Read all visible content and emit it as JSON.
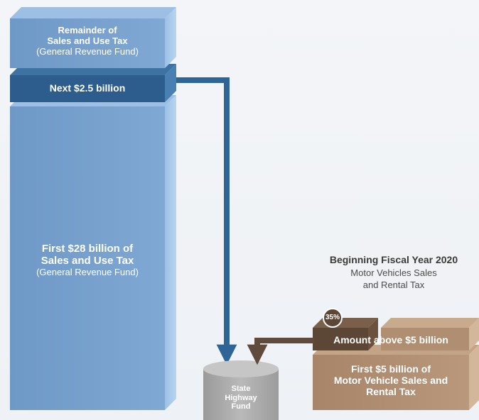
{
  "sales_tax": {
    "remainder": {
      "line1": "Remainder of",
      "line2": "Sales and Use Tax",
      "line3": "(General Revenue Fund)"
    },
    "next": {
      "label": "Next $2.5 billion"
    },
    "first": {
      "line1": "First $28 billion of",
      "line2": "Sales and Use Tax",
      "line3": "(General Revenue Fund)"
    }
  },
  "motor_vehicle": {
    "heading": "Beginning Fiscal Year 2020",
    "sub1": "Motor Vehicles Sales",
    "sub2": "and Rental Tax",
    "percent": "35%",
    "above": "Amount above $5 billion",
    "first": {
      "line1": "First $5 billion of",
      "line2": "Motor Vehicle Sales and",
      "line3": "Rental Tax"
    }
  },
  "fund": {
    "line1": "State",
    "line2": "Highway",
    "line3": "Fund"
  },
  "colors": {
    "blue_light": "#7aa3d1",
    "blue_dark": "#2c5d8c",
    "blue_arrow": "#2f6496",
    "tan": "#b08e71",
    "tan_dark": "#5c4636",
    "brown_arrow": "#5f4a3b",
    "gray_cylinder": "#a8a8a8"
  }
}
